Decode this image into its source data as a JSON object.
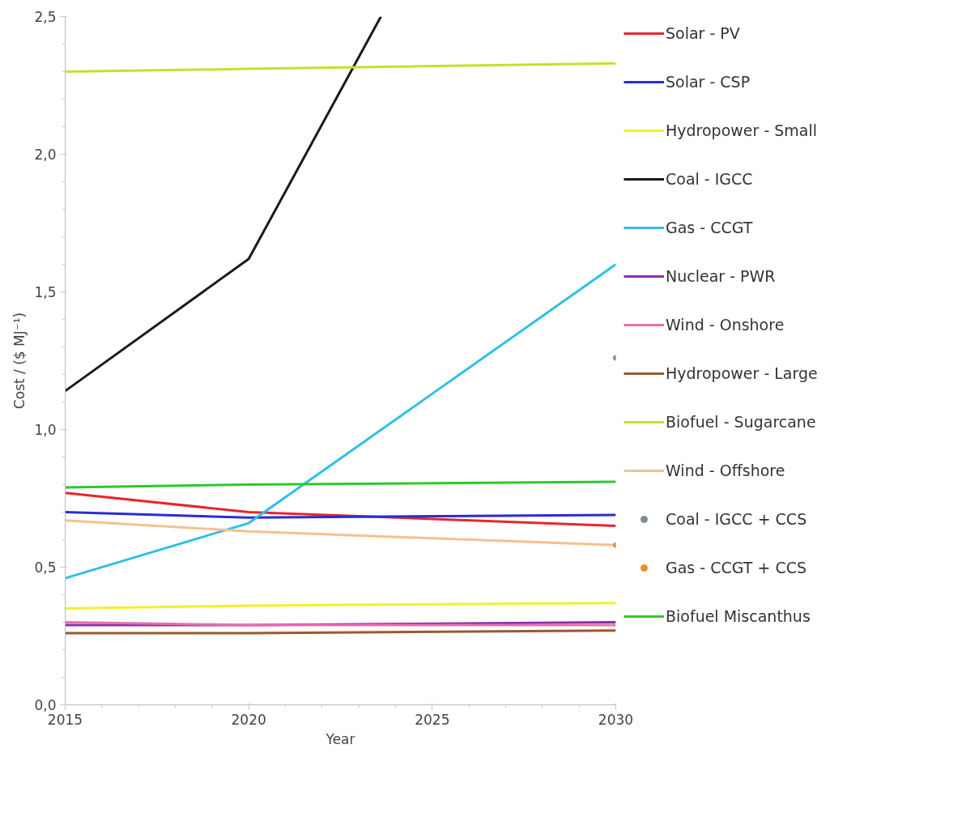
{
  "chart_data": {
    "type": "line",
    "xlabel": "Year",
    "ylabel": "Cost / ($ MJ⁻¹)",
    "x": [
      2015,
      2020,
      2030
    ],
    "xlim": [
      2015,
      2030
    ],
    "xticks": [
      2015,
      2020,
      2025,
      2030
    ],
    "ylim": [
      0,
      2.5
    ],
    "yticks": [
      {
        "value": 0,
        "label": "0,0"
      },
      {
        "value": 0.5,
        "label": "0,5"
      },
      {
        "value": 1.0,
        "label": "1,0"
      },
      {
        "value": 1.5,
        "label": "1,5"
      },
      {
        "value": 2.0,
        "label": "2,0"
      },
      {
        "value": 2.5,
        "label": "2,5"
      }
    ],
    "grid": false,
    "legend": "right",
    "marker": "none",
    "line_style": "solid",
    "series": [
      {
        "name": "Solar - PV",
        "color": "#e8262b",
        "values": [
          0.77,
          0.7,
          0.65
        ]
      },
      {
        "name": "Solar - CSP",
        "color": "#2b2bd6",
        "values": [
          0.7,
          0.68,
          0.69
        ]
      },
      {
        "name": "Hydropower - Small",
        "color": "#f2f02a",
        "values": [
          0.35,
          0.36,
          0.37
        ]
      },
      {
        "name": "Coal - IGCC",
        "color": "#1a1a1a",
        "x": [
          2015,
          2020,
          2023.6
        ],
        "values": [
          1.14,
          1.62,
          2.5
        ]
      },
      {
        "name": "Gas - CCGT",
        "color": "#2ebfe8",
        "values": [
          0.46,
          0.66,
          1.6
        ]
      },
      {
        "name": "Nuclear - PWR",
        "color": "#8a2fa8",
        "values": [
          0.29,
          0.29,
          0.3
        ]
      },
      {
        "name": "Wind - Onshore",
        "color": "#e86fb0",
        "values": [
          0.3,
          0.29,
          0.29
        ]
      },
      {
        "name": "Hydropower - Large",
        "color": "#9a5a2e",
        "values": [
          0.26,
          0.26,
          0.27
        ]
      },
      {
        "name": "Biofuel - Sugarcane",
        "color": "#c6e02a",
        "values": [
          2.3,
          2.31,
          2.33
        ]
      },
      {
        "name": "Wind - Offshore",
        "color": "#f5c08f",
        "values": [
          0.67,
          0.63,
          0.58
        ]
      },
      {
        "name": "Coal - IGCC + CCS",
        "color": "#7f8c8d",
        "type": "scatter",
        "x": [
          2030
        ],
        "values": [
          1.26
        ]
      },
      {
        "name": "Gas - CCGT + CCS",
        "color": "#f08a2a",
        "type": "scatter",
        "x": [
          2030
        ],
        "values": [
          0.58
        ]
      },
      {
        "name": "Biofuel Miscanthus",
        "color": "#2ec82e",
        "values": [
          0.79,
          0.8,
          0.81
        ]
      }
    ]
  }
}
